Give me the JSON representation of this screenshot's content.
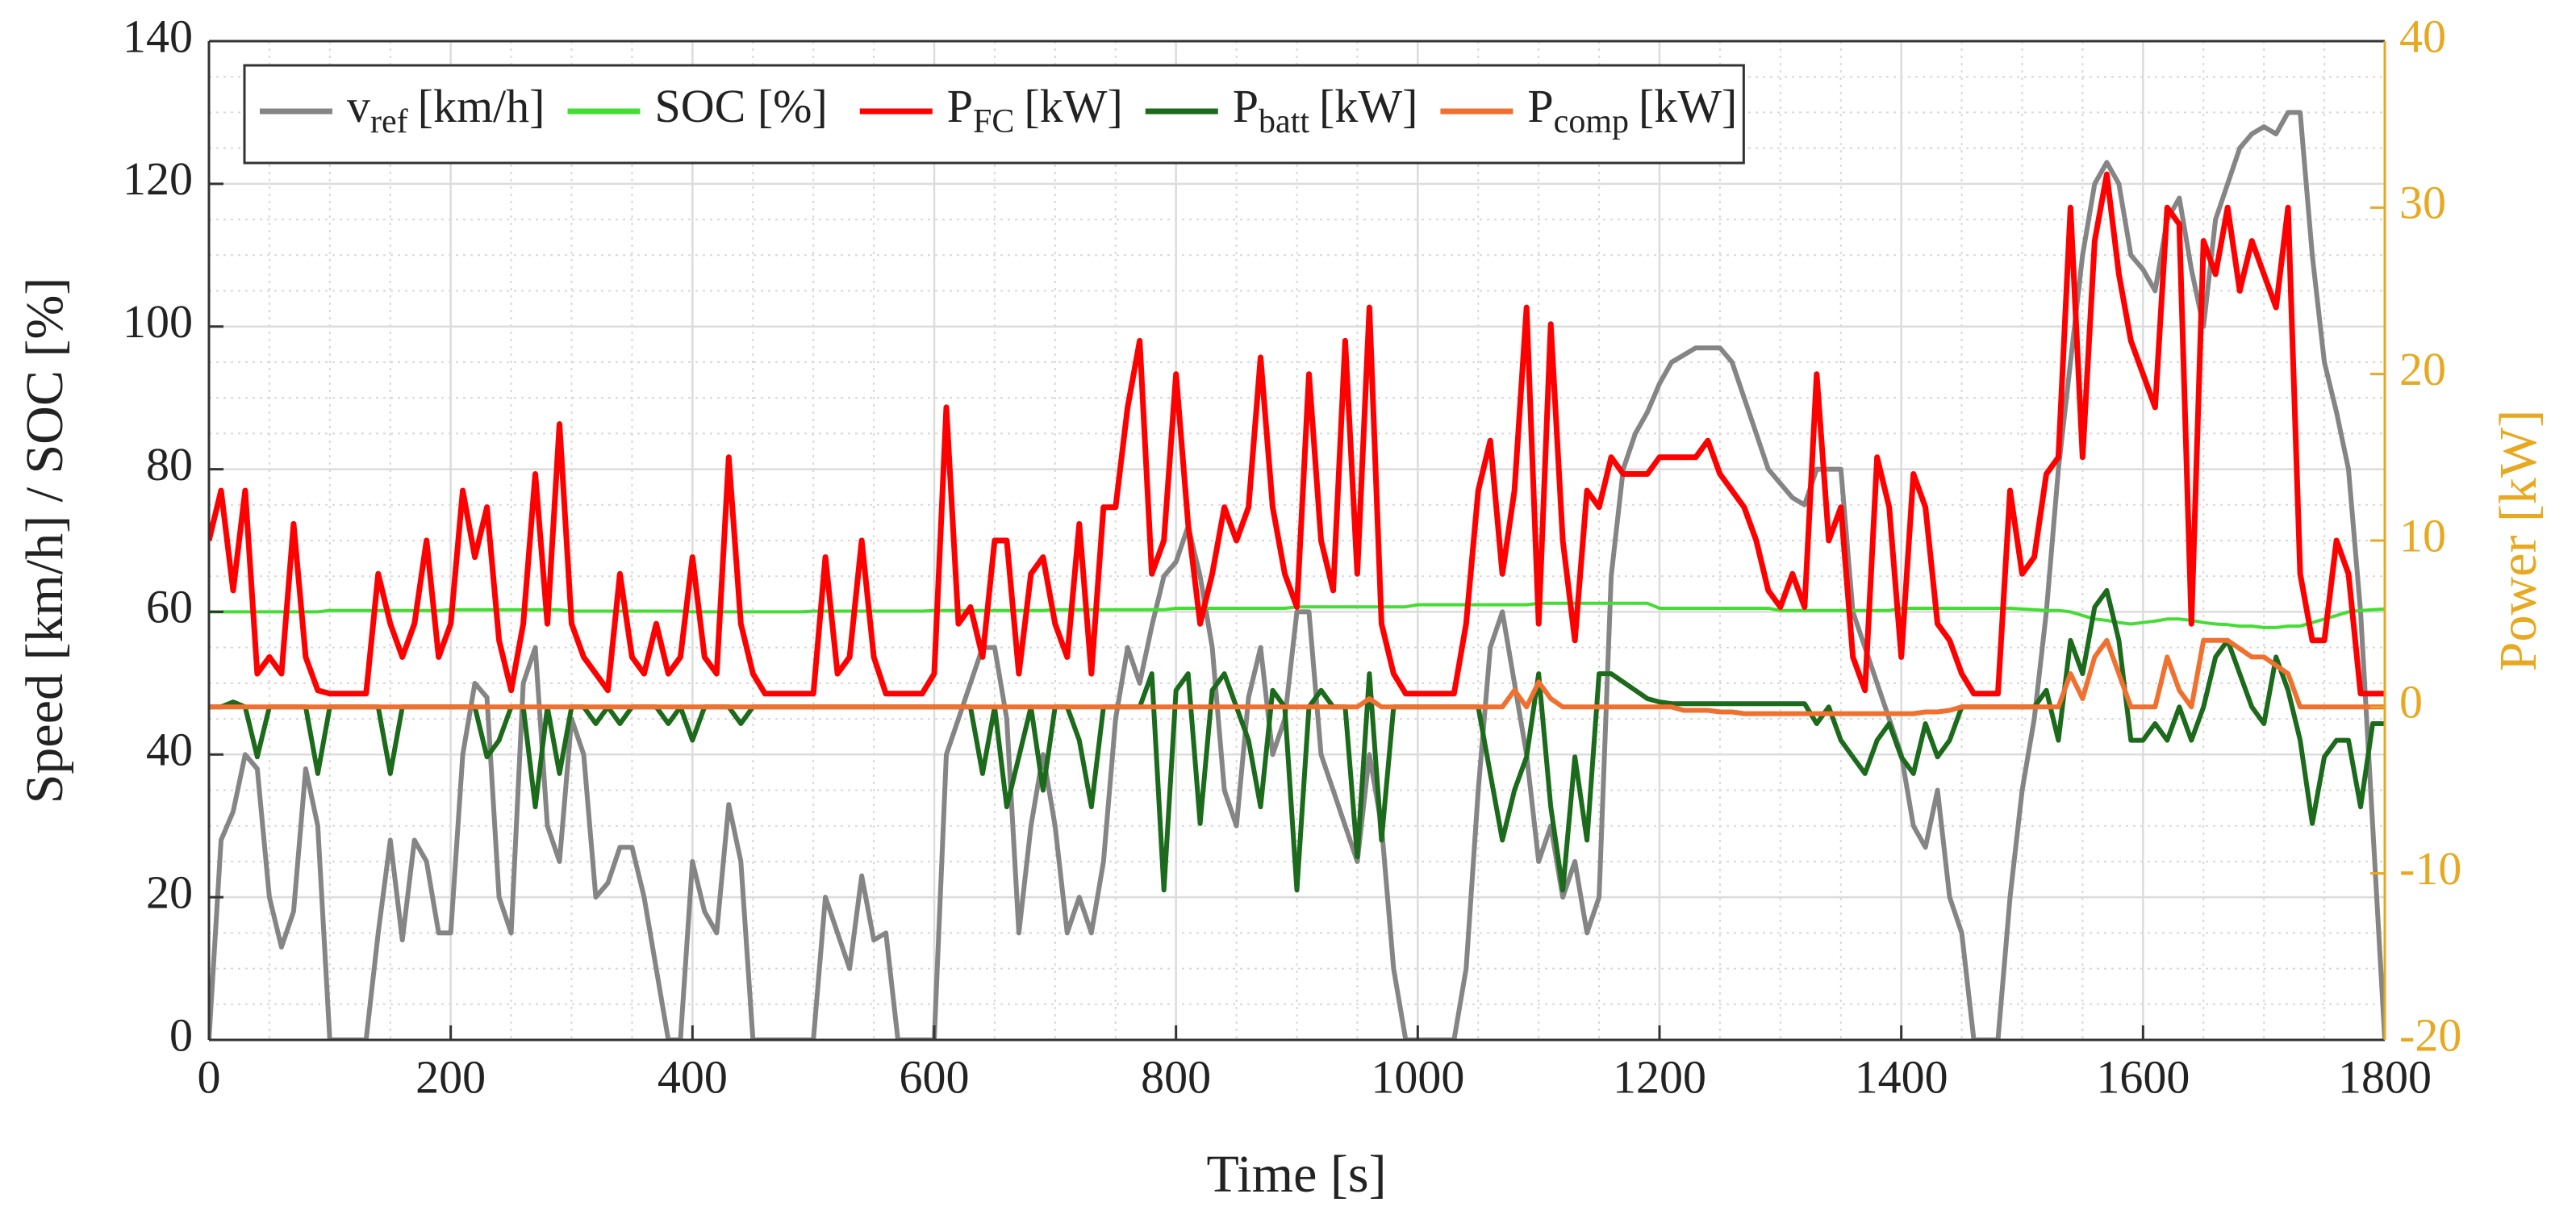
{
  "chart_data": {
    "type": "line",
    "xlabel": "Time [s]",
    "ylabel": "Speed [km/h] / SOC [%]",
    "y2label": "Power [kW]",
    "y2color": "#e8a820",
    "xlim": [
      0,
      1800
    ],
    "xticks": [
      0,
      200,
      400,
      600,
      800,
      1000,
      1200,
      1400,
      1600,
      1800
    ],
    "ylim": [
      0,
      140
    ],
    "yticks": [
      0,
      20,
      40,
      60,
      80,
      100,
      120,
      140
    ],
    "y2lim": [
      -20,
      40
    ],
    "y2ticks": [
      -20,
      -10,
      0,
      10,
      20,
      30,
      40
    ],
    "grid": true,
    "minor_grid": true,
    "legend": "upper left",
    "x": [
      0,
      10,
      20,
      30,
      40,
      50,
      60,
      70,
      80,
      90,
      100,
      110,
      120,
      130,
      140,
      150,
      160,
      170,
      180,
      190,
      200,
      210,
      220,
      230,
      240,
      250,
      260,
      270,
      280,
      290,
      300,
      310,
      320,
      330,
      340,
      350,
      360,
      370,
      380,
      390,
      400,
      410,
      420,
      430,
      440,
      450,
      460,
      470,
      480,
      490,
      500,
      510,
      520,
      530,
      540,
      550,
      560,
      570,
      580,
      590,
      600,
      610,
      620,
      630,
      640,
      650,
      660,
      670,
      680,
      690,
      700,
      710,
      720,
      730,
      740,
      750,
      760,
      770,
      780,
      790,
      800,
      810,
      820,
      830,
      840,
      850,
      860,
      870,
      880,
      890,
      900,
      910,
      920,
      930,
      940,
      950,
      960,
      970,
      980,
      990,
      1000,
      1010,
      1020,
      1030,
      1040,
      1050,
      1060,
      1070,
      1080,
      1090,
      1100,
      1110,
      1120,
      1130,
      1140,
      1150,
      1160,
      1170,
      1180,
      1190,
      1200,
      1210,
      1220,
      1230,
      1240,
      1250,
      1260,
      1270,
      1280,
      1290,
      1300,
      1310,
      1320,
      1330,
      1340,
      1350,
      1360,
      1370,
      1380,
      1390,
      1400,
      1410,
      1420,
      1430,
      1440,
      1450,
      1460,
      1470,
      1480,
      1490,
      1500,
      1510,
      1520,
      1530,
      1540,
      1550,
      1560,
      1570,
      1580,
      1590,
      1600,
      1610,
      1620,
      1630,
      1640,
      1650,
      1660,
      1670,
      1680,
      1690,
      1700,
      1710,
      1720,
      1730,
      1740,
      1750,
      1760,
      1770,
      1780,
      1790,
      1800
    ],
    "series": [
      {
        "name": "v",
        "subscript": "ref",
        "unit": "[km/h]",
        "color": "#858585",
        "values": [
          0,
          28,
          32,
          40,
          38,
          20,
          13,
          18,
          38,
          30,
          0,
          0,
          0,
          0,
          15,
          28,
          14,
          28,
          25,
          15,
          15,
          40,
          50,
          48,
          20,
          15,
          50,
          55,
          30,
          25,
          45,
          40,
          20,
          22,
          27,
          27,
          20,
          10,
          0,
          0,
          25,
          18,
          15,
          33,
          25,
          0,
          0,
          0,
          0,
          0,
          0,
          20,
          15,
          10,
          23,
          14,
          15,
          0,
          0,
          0,
          0,
          40,
          45,
          50,
          55,
          55,
          45,
          15,
          30,
          40,
          30,
          15,
          20,
          15,
          25,
          45,
          55,
          50,
          58,
          65,
          67,
          72,
          65,
          55,
          35,
          30,
          48,
          55,
          40,
          45,
          60,
          60,
          40,
          35,
          30,
          25,
          40,
          30,
          10,
          0,
          0,
          0,
          0,
          0,
          10,
          35,
          55,
          60,
          50,
          40,
          25,
          30,
          20,
          25,
          15,
          20,
          65,
          80,
          85,
          88,
          92,
          95,
          96,
          97,
          97,
          97,
          95,
          90,
          85,
          80,
          78,
          76,
          75,
          80,
          80,
          80,
          60,
          55,
          50,
          45,
          40,
          30,
          27,
          35,
          20,
          15,
          0,
          0,
          0,
          20,
          35,
          45,
          60,
          80,
          95,
          110,
          120,
          123,
          120,
          110,
          108,
          105,
          115,
          118,
          108,
          100,
          115,
          120,
          125,
          127,
          128,
          127,
          130,
          130,
          110,
          95,
          88,
          80,
          60,
          30,
          0
        ]
      },
      {
        "name": "SOC [%]",
        "color": "#44dd33",
        "values": [
          60,
          60,
          60,
          60,
          60,
          60,
          60,
          60,
          60,
          60,
          60.2,
          60.2,
          60.2,
          60.2,
          60.2,
          60.2,
          60.2,
          60.2,
          60.2,
          60.2,
          60.3,
          60.3,
          60.3,
          60.3,
          60.3,
          60.3,
          60.3,
          60.3,
          60.3,
          60.3,
          60.1,
          60.1,
          60.1,
          60.1,
          60.1,
          60.1,
          60.1,
          60.1,
          60.1,
          60.1,
          60,
          60,
          60,
          60,
          60,
          60,
          60,
          60,
          60,
          60,
          60.1,
          60.1,
          60.1,
          60.1,
          60.1,
          60.1,
          60.1,
          60.1,
          60.1,
          60.1,
          60.2,
          60.2,
          60.2,
          60.2,
          60.2,
          60.2,
          60.2,
          60.2,
          60.2,
          60.2,
          60.3,
          60.3,
          60.3,
          60.3,
          60.3,
          60.3,
          60.3,
          60.3,
          60.3,
          60.3,
          60.5,
          60.5,
          60.5,
          60.5,
          60.5,
          60.5,
          60.5,
          60.5,
          60.5,
          60.5,
          60.7,
          60.7,
          60.7,
          60.7,
          60.7,
          60.7,
          60.7,
          60.7,
          60.7,
          60.7,
          61,
          61,
          61,
          61,
          61,
          61,
          61,
          61,
          61,
          61,
          61.2,
          61.2,
          61.2,
          61.2,
          61.2,
          61.2,
          61.2,
          61.2,
          61.2,
          61.2,
          60.5,
          60.5,
          60.5,
          60.5,
          60.5,
          60.5,
          60.5,
          60.5,
          60.5,
          60.5,
          60.2,
          60.2,
          60.2,
          60.2,
          60.2,
          60.2,
          60.2,
          60.2,
          60.2,
          60.2,
          60.5,
          60.5,
          60.5,
          60.5,
          60.5,
          60.5,
          60.5,
          60.5,
          60.5,
          60.5,
          60.4,
          60.3,
          60.2,
          60.2,
          60,
          59.5,
          59,
          58.8,
          58.5,
          58.3,
          58.5,
          58.7,
          59,
          59,
          58.8,
          58.5,
          58.3,
          58.2,
          58,
          58,
          57.8,
          57.8,
          58,
          58,
          58.5,
          59,
          59.5,
          60,
          60.2,
          60.3,
          60.4
        ]
      },
      {
        "name": "P",
        "subscript": "FC",
        "unit": "[kW]",
        "color": "#ff0000",
        "axis": "y2",
        "values": [
          10,
          13,
          7,
          13,
          2,
          3,
          2,
          11,
          3,
          1,
          0.8,
          0.8,
          0.8,
          0.8,
          8,
          5,
          3,
          5,
          10,
          3,
          5,
          13,
          9,
          12,
          4,
          1,
          5,
          14,
          5,
          17,
          5,
          3,
          2,
          1,
          8,
          3,
          2,
          5,
          2,
          3,
          9,
          3,
          2,
          15,
          5,
          2,
          0.8,
          0.8,
          0.8,
          0.8,
          0.8,
          9,
          2,
          3,
          10,
          3,
          0.8,
          0.8,
          0.8,
          0.8,
          2,
          18,
          5,
          6,
          3,
          10,
          10,
          2,
          8,
          9,
          5,
          3,
          11,
          2,
          12,
          12,
          18,
          22,
          8,
          10,
          20,
          11,
          5,
          8,
          12,
          10,
          12,
          21,
          12,
          8,
          6,
          20,
          10,
          7,
          22,
          8,
          24,
          5,
          2,
          0.8,
          0.8,
          0.8,
          0.8,
          0.8,
          5,
          13,
          16,
          8,
          13,
          24,
          5,
          23,
          10,
          4,
          13,
          12,
          15,
          14,
          14,
          14,
          15,
          15,
          15,
          15,
          16,
          14,
          13,
          12,
          10,
          7,
          6,
          8,
          6,
          20,
          10,
          12,
          3,
          1,
          15,
          12,
          3,
          14,
          12,
          5,
          4,
          2,
          0.8,
          0.8,
          0.8,
          13,
          8,
          9,
          14,
          15,
          30,
          15,
          28,
          32,
          26,
          22,
          20,
          18,
          30,
          29,
          5,
          28,
          26,
          30,
          25,
          28,
          26,
          24,
          30,
          8,
          4,
          4,
          10,
          8,
          0.8,
          0.8,
          0.8
        ]
      },
      {
        "name": "P",
        "subscript": "batt",
        "unit": "[kW]",
        "color": "#1c6b1c",
        "axis": "y2",
        "values": [
          0,
          0,
          0.3,
          0,
          -3,
          0,
          0,
          0,
          0,
          -4,
          0,
          0,
          0,
          0,
          0,
          -4,
          0,
          0,
          0,
          0,
          0,
          0,
          0,
          -3,
          -2,
          0,
          0,
          -6,
          0,
          -4,
          0,
          0,
          -1,
          0,
          -1,
          0,
          0,
          0,
          -1,
          0,
          -2,
          0,
          0,
          0,
          -1,
          0,
          0,
          0,
          0,
          0,
          0,
          0,
          0,
          0,
          0,
          0,
          0,
          0,
          0,
          0,
          0,
          0,
          0,
          0,
          -4,
          0,
          -6,
          -3,
          0,
          -5,
          0,
          0,
          -2,
          -6,
          0,
          0,
          0,
          0,
          2,
          -11,
          1,
          2,
          -7,
          1,
          2,
          0,
          -2,
          -6,
          1,
          0,
          -11,
          0,
          1,
          0,
          0,
          -9,
          2,
          -8,
          0,
          0,
          0,
          0,
          0,
          0,
          0,
          0,
          -4,
          -8,
          -5,
          -3,
          2,
          -6,
          -11,
          -3,
          -8,
          2,
          2,
          1.5,
          1,
          0.5,
          0.3,
          0.2,
          0.2,
          0.2,
          0.2,
          0.2,
          0.2,
          0.2,
          0.2,
          0.2,
          0.2,
          0.2,
          0.2,
          -1,
          0,
          -2,
          -3,
          -4,
          -2,
          -1,
          -3,
          -4,
          -1,
          -3,
          -2,
          0,
          0,
          0,
          0,
          0,
          0,
          0,
          1,
          -2,
          4,
          2,
          6,
          7,
          4,
          -2,
          -2,
          -1,
          -2,
          0,
          -2,
          0,
          3,
          4,
          2,
          0,
          -1,
          3,
          1,
          -2,
          -7,
          -3,
          -2,
          -2,
          -6,
          -1,
          -1
        ]
      },
      {
        "name": "P",
        "subscript": "comp",
        "unit": "[kW]",
        "color": "#f07030",
        "axis": "y2",
        "values": [
          0,
          0,
          0,
          0,
          0,
          0,
          0,
          0,
          0,
          0,
          0,
          0,
          0,
          0,
          0,
          0,
          0,
          0,
          0,
          0,
          0,
          0,
          0,
          0,
          0,
          0,
          0,
          0,
          0,
          0,
          0,
          0,
          0,
          0,
          0,
          0,
          0,
          0,
          0,
          0,
          0,
          0,
          0,
          0,
          0,
          0,
          0,
          0,
          0,
          0,
          0,
          0,
          0,
          0,
          0,
          0,
          0,
          0,
          0,
          0,
          0,
          0,
          0,
          0,
          0,
          0,
          0,
          0,
          0,
          0,
          0,
          0,
          0,
          0,
          0,
          0,
          0,
          0,
          0,
          0,
          0,
          0,
          0,
          0,
          0,
          0,
          0,
          0,
          0,
          0,
          0,
          0,
          0,
          0,
          0,
          0,
          0.5,
          0,
          0,
          0,
          0,
          0,
          0,
          0,
          0,
          0,
          0,
          0,
          1,
          0,
          1.5,
          0.5,
          0,
          0,
          0,
          0,
          0,
          0,
          0,
          0,
          0,
          0,
          -0.2,
          -0.2,
          -0.2,
          -0.3,
          -0.3,
          -0.4,
          -0.4,
          -0.4,
          -0.4,
          -0.4,
          -0.4,
          -0.4,
          -0.4,
          -0.4,
          -0.4,
          -0.4,
          -0.4,
          -0.4,
          -0.4,
          -0.4,
          -0.3,
          -0.3,
          -0.2,
          0,
          0,
          0,
          0,
          0,
          0,
          0,
          0,
          0,
          2,
          0.5,
          3,
          4,
          2,
          0,
          0,
          0,
          3,
          1,
          0,
          4,
          4,
          4,
          3.5,
          3,
          3,
          2.5,
          2,
          0,
          0,
          0,
          0,
          0,
          0,
          0,
          0
        ]
      }
    ]
  }
}
